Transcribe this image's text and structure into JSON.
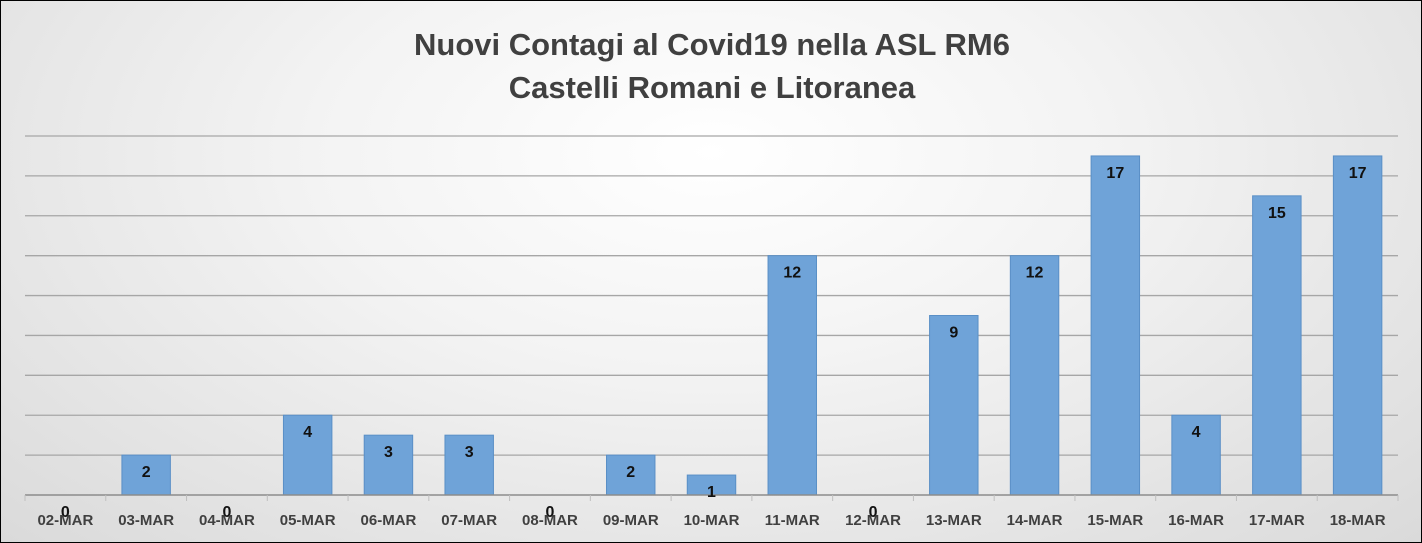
{
  "chart_data": {
    "type": "bar",
    "title_lines": [
      "Nuovi Contagi al Covid19 nella ASL RM6",
      "Castelli Romani e Litoranea"
    ],
    "categories": [
      "02-MAR",
      "03-MAR",
      "04-MAR",
      "05-MAR",
      "06-MAR",
      "07-MAR",
      "08-MAR",
      "09-MAR",
      "10-MAR",
      "11-MAR",
      "12-MAR",
      "13-MAR",
      "14-MAR",
      "15-MAR",
      "16-MAR",
      "17-MAR",
      "18-MAR"
    ],
    "values": [
      0,
      2,
      0,
      4,
      3,
      3,
      0,
      2,
      1,
      12,
      0,
      9,
      12,
      17,
      4,
      15,
      17
    ],
    "ylim": [
      0,
      18
    ],
    "grid": true,
    "legend": "none",
    "colors": {
      "bar_fill": "#6fa3d8",
      "bar_stroke": "#5a8fc6"
    }
  }
}
